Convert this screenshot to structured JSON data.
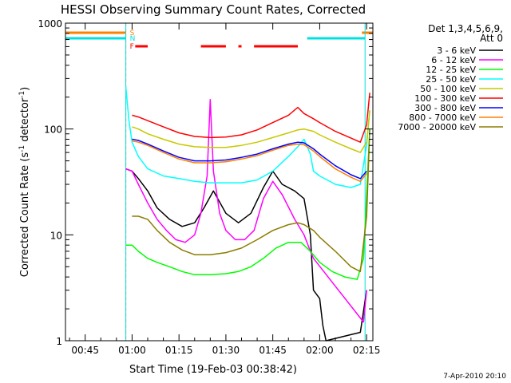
{
  "chart_data": {
    "type": "line",
    "title": "HESSI Observing Summary Count Rates, Corrected",
    "xlabel": "Start Time (19-Feb-03 00:38:42)",
    "ylabel_main": "Corrected Count Rate (s",
    "ylabel_sup1": "-1",
    "ylabel_mid": " detector",
    "ylabel_sup2": "-1",
    "ylabel_end": ")",
    "yscale": "log",
    "xlim": [
      "00:38:42",
      "02:17:00"
    ],
    "ylim": [
      1,
      1000
    ],
    "x_ticks": [
      "00:45",
      "01:00",
      "01:15",
      "01:30",
      "01:45",
      "02:00",
      "02:15"
    ],
    "y_ticks": [
      "1",
      "10",
      "100",
      "1000"
    ],
    "legend_header": [
      "Det 1,3,4,5,6,9,",
      "Att 0"
    ],
    "legend_position": "right",
    "footer_date": "7-Apr-2010 20:10",
    "flags": {
      "S": "S",
      "N": "N",
      "F": "F"
    },
    "flag_colors": {
      "S": "#ff8000",
      "N": "#00e0e0",
      "F": "#ff0000"
    },
    "flag_intervals": {
      "S": [
        [
          "00:38:42",
          "00:58:00"
        ],
        [
          "02:13:30",
          "02:17:00"
        ]
      ],
      "N": [
        [
          "00:38:42",
          "00:58:00"
        ],
        [
          "01:56:00",
          "02:14:30"
        ]
      ],
      "F": [
        [
          "01:01:00",
          "01:05:00"
        ],
        [
          "01:22:00",
          "01:30:00"
        ],
        [
          "01:34:00",
          "01:35:00"
        ],
        [
          "01:39:00",
          "01:53:00"
        ]
      ]
    },
    "series": [
      {
        "name": "3 - 6 keV",
        "color": "#000000",
        "x": [
          "00:58",
          "01:00",
          "01:02",
          "01:05",
          "01:08",
          "01:12",
          "01:16",
          "01:20",
          "01:23",
          "01:26",
          "01:30",
          "01:34",
          "01:38",
          "01:42",
          "01:45",
          "01:48",
          "01:52",
          "01:55",
          "01:57",
          "01:58",
          "02:00",
          "02:01",
          "02:02",
          "02:13",
          "02:15"
        ],
        "y": [
          42,
          40,
          34,
          26,
          18,
          14,
          12,
          13,
          18,
          26,
          16,
          13,
          16,
          28,
          40,
          30,
          26,
          22,
          10,
          3,
          2.5,
          1.4,
          1,
          1.2,
          3
        ]
      },
      {
        "name": "6 - 12 keV",
        "color": "#ff00ff",
        "x": [
          "00:58",
          "01:00",
          "01:02",
          "01:05",
          "01:08",
          "01:11",
          "01:14",
          "01:17",
          "01:20",
          "01:22",
          "01:24",
          "01:25",
          "01:26",
          "01:28",
          "01:30",
          "01:33",
          "01:36",
          "01:39",
          "01:42",
          "01:45",
          "01:48",
          "01:52",
          "01:55",
          "01:57",
          "01:58",
          "02:14",
          "02:15"
        ],
        "y": [
          42,
          40,
          30,
          20,
          14,
          11,
          9,
          8.5,
          10,
          16,
          36,
          190,
          40,
          16,
          11,
          9,
          9,
          11,
          22,
          32,
          24,
          14,
          10,
          7,
          6,
          1.5,
          3
        ]
      },
      {
        "name": "12 - 25 keV",
        "color": "#00ff00",
        "x": [
          "00:58",
          "01:00",
          "01:02",
          "01:05",
          "01:08",
          "01:12",
          "01:16",
          "01:20",
          "01:25",
          "01:30",
          "01:34",
          "01:38",
          "01:42",
          "01:46",
          "01:50",
          "01:54",
          "01:57",
          "02:00",
          "02:04",
          "02:08",
          "02:12",
          "02:14",
          "02:16"
        ],
        "y": [
          8,
          8,
          7,
          6,
          5.5,
          5,
          4.5,
          4.2,
          4.2,
          4.3,
          4.5,
          5,
          6,
          7.5,
          8.5,
          8.5,
          7,
          5.5,
          4.5,
          4,
          3.8,
          6,
          100
        ]
      },
      {
        "name": "25 - 50 keV",
        "color": "#00ffff",
        "x": [
          "00:58",
          "00:59",
          "01:00",
          "01:02",
          "01:05",
          "01:10",
          "01:15",
          "01:20",
          "01:25",
          "01:30",
          "01:35",
          "01:40",
          "01:45",
          "01:50",
          "01:53",
          "01:55",
          "01:57",
          "01:58",
          "02:00",
          "02:05",
          "02:10",
          "02:13",
          "02:15",
          "02:16"
        ],
        "y": [
          250,
          120,
          75,
          55,
          42,
          36,
          34,
          32,
          31,
          31,
          31,
          33,
          40,
          55,
          68,
          80,
          58,
          40,
          36,
          30,
          28,
          30,
          70,
          150
        ]
      },
      {
        "name": "50 - 100 keV",
        "color": "#c8c800",
        "x": [
          "01:00",
          "01:02",
          "01:05",
          "01:10",
          "01:15",
          "01:20",
          "01:25",
          "01:30",
          "01:35",
          "01:40",
          "01:45",
          "01:50",
          "01:53",
          "01:55",
          "01:58",
          "02:00",
          "02:05",
          "02:10",
          "02:13",
          "02:15",
          "02:16"
        ],
        "y": [
          105,
          100,
          90,
          80,
          72,
          68,
          67,
          67,
          70,
          75,
          83,
          92,
          98,
          100,
          95,
          88,
          75,
          65,
          60,
          75,
          150
        ]
      },
      {
        "name": "100 - 300 keV",
        "color": "#ff0000",
        "x": [
          "01:00",
          "01:02",
          "01:05",
          "01:10",
          "01:15",
          "01:20",
          "01:25",
          "01:30",
          "01:35",
          "01:40",
          "01:45",
          "01:50",
          "01:53",
          "01:55",
          "01:58",
          "02:00",
          "02:05",
          "02:10",
          "02:13",
          "02:15",
          "02:16"
        ],
        "y": [
          135,
          130,
          120,
          105,
          92,
          85,
          83,
          84,
          88,
          98,
          115,
          135,
          160,
          140,
          125,
          115,
          95,
          82,
          75,
          110,
          220
        ]
      },
      {
        "name": "300 - 800 keV",
        "color": "#0000ff",
        "x": [
          "01:00",
          "01:02",
          "01:05",
          "01:10",
          "01:15",
          "01:20",
          "01:25",
          "01:30",
          "01:35",
          "01:40",
          "01:45",
          "01:50",
          "01:53",
          "01:55",
          "01:58",
          "02:00",
          "02:05",
          "02:10",
          "02:13",
          "02:15"
        ],
        "y": [
          80,
          78,
          72,
          62,
          54,
          50,
          50,
          51,
          54,
          58,
          65,
          72,
          75,
          74,
          65,
          58,
          45,
          37,
          34,
          40
        ]
      },
      {
        "name": "800 - 7000 keV",
        "color": "#ff8000",
        "x": [
          "01:00",
          "01:02",
          "01:05",
          "01:10",
          "01:15",
          "01:20",
          "01:25",
          "01:30",
          "01:35",
          "01:40",
          "01:45",
          "01:50",
          "01:53",
          "01:55",
          "01:58",
          "02:00",
          "02:05",
          "02:10",
          "02:13",
          "02:15"
        ],
        "y": [
          77,
          75,
          70,
          60,
          52,
          48,
          48,
          49,
          52,
          56,
          63,
          70,
          72,
          71,
          62,
          55,
          42,
          35,
          32,
          38
        ]
      },
      {
        "name": "7000 - 20000 keV",
        "color": "#8b7d00",
        "x": [
          "01:00",
          "01:02",
          "01:05",
          "01:08",
          "01:12",
          "01:16",
          "01:20",
          "01:25",
          "01:30",
          "01:35",
          "01:40",
          "01:45",
          "01:50",
          "01:53",
          "01:55",
          "01:58",
          "02:00",
          "02:05",
          "02:10",
          "02:13",
          "02:15",
          "02:16"
        ],
        "y": [
          15,
          15,
          14,
          11,
          8.5,
          7.2,
          6.5,
          6.5,
          6.8,
          7.5,
          9,
          11,
          12.5,
          13,
          12.5,
          11,
          9.5,
          7,
          5,
          4.5,
          15,
          100
        ]
      }
    ]
  }
}
